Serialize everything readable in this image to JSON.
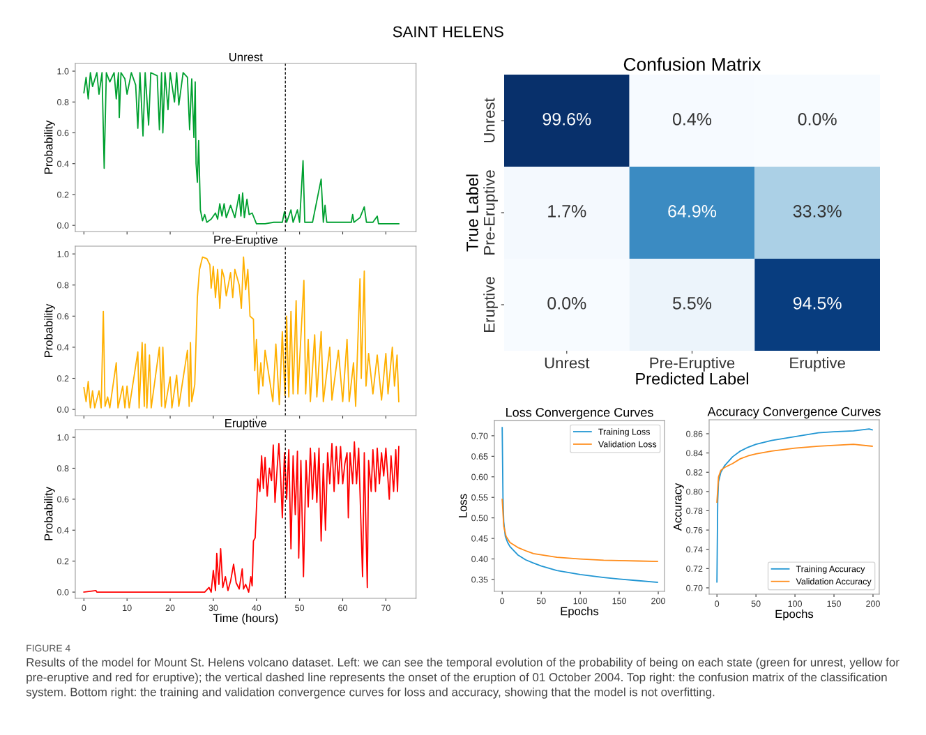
{
  "chart_data": [
    {
      "type": "line",
      "title": "Unrest",
      "ylabel": "Probability",
      "xlim": [
        -2,
        77
      ],
      "ylim": [
        -0.04,
        1.05
      ],
      "xticks": [
        0,
        10,
        20,
        30,
        40,
        50,
        60,
        70
      ],
      "yticks": [
        {
          "value": 0,
          "label": "0.0"
        },
        0.2,
        0.4,
        0.6,
        0.8,
        {
          "value": 1,
          "label": "1.0"
        }
      ],
      "tick_labels": "y",
      "grid": false,
      "legend": false,
      "annotations": [
        "SAINT HELENS",
        "FIGURE 4",
        "Results of the model for Mount St. Helens volcano dataset. Left: we can see the temporal evolution of the probability of being on each state (green for unrest, yellow for pre-eruptive and red for eruptive); the vertical dashed line represents the onset of the eruption of 01 October 2004. Top right: the confusion matrix of the classification system. Bottom right: the training and validation convergence curves for loss and accuracy, showing that the model is not overfitting."
      ],
      "ref_lines": [
        {
          "axis": "x",
          "value": 46.7,
          "label": null,
          "color": "#000000",
          "line_style": "dashed"
        }
      ],
      "series": [
        {
          "color": "#00a030",
          "x": [
            0,
            0.5,
            1,
            1.5,
            2,
            3,
            3.5,
            4.2,
            4.7,
            5.2,
            6,
            7,
            7.5,
            8,
            8.2,
            8.6,
            9.5,
            10,
            11,
            12,
            12.5,
            13,
            13.7,
            14.2,
            15,
            15.5,
            17,
            17.5,
            18,
            18.3,
            18.8,
            19.5,
            20,
            21,
            21.5,
            22,
            23,
            24,
            24.5,
            25,
            25.5,
            25.8,
            26,
            26.3,
            26.6,
            27,
            27.5,
            28,
            28.5,
            29.5,
            30.5,
            31,
            31.5,
            32,
            32.5,
            33,
            34,
            35,
            36,
            36.4,
            36.8,
            37.2,
            37.8,
            38.3,
            39,
            40,
            42,
            44,
            46,
            46.5,
            47,
            48,
            48.5,
            49.5,
            50,
            50.8,
            51.2,
            53,
            55,
            55.5,
            55.9,
            56.3,
            59,
            62,
            62.3,
            62.6,
            64,
            65,
            65.5,
            67,
            68,
            68.3,
            70,
            73
          ],
          "values": [
            0.86,
            0.96,
            0.82,
            0.99,
            0.9,
            0.99,
            0.85,
            0.99,
            0.37,
            0.99,
            0.93,
            0.99,
            0.82,
            0.99,
            0.7,
            0.99,
            0.95,
            0.85,
            0.99,
            0.91,
            0.63,
            0.99,
            0.58,
            0.99,
            0.65,
            0.99,
            0.97,
            0.62,
            0.99,
            0.6,
            0.99,
            0.75,
            0.99,
            0.8,
            0.99,
            0.78,
            0.99,
            0.96,
            0.62,
            0.95,
            0.57,
            0.93,
            0.4,
            0.28,
            0.55,
            0.1,
            0.03,
            0.07,
            0.02,
            0.04,
            0.08,
            0.04,
            0.14,
            0.06,
            0.14,
            0.05,
            0.13,
            0.05,
            0.2,
            0.06,
            0.21,
            0.05,
            0.17,
            0.07,
            0.08,
            0.01,
            0.01,
            0.02,
            0.02,
            0.09,
            0.02,
            0.1,
            0.02,
            0.1,
            0.02,
            0.42,
            0.02,
            0.02,
            0.3,
            0.02,
            0.13,
            0.02,
            0.02,
            0.02,
            0.07,
            0.02,
            0.05,
            0.12,
            0.02,
            0.02,
            0.06,
            0.01,
            0.01,
            0.01
          ]
        }
      ]
    },
    {
      "type": "line",
      "title": "Pre-Eruptive",
      "ylabel": "Probability",
      "xlim": [
        -2,
        77
      ],
      "ylim": [
        -0.04,
        1.05
      ],
      "xticks": [
        0,
        10,
        20,
        30,
        40,
        50,
        60,
        70
      ],
      "yticks": [
        {
          "value": 0,
          "label": "0.0"
        },
        0.2,
        0.4,
        0.6,
        0.8,
        {
          "value": 1,
          "label": "1.0"
        }
      ],
      "tick_labels": "y",
      "grid": false,
      "legend": false,
      "ref_lines": [
        {
          "axis": "x",
          "value": 46.7,
          "label": null,
          "color": "#000000",
          "line_style": "dashed"
        }
      ],
      "series": [
        {
          "color": "#ffb000",
          "x": [
            0,
            0.5,
            1,
            1.5,
            2,
            2.5,
            3.5,
            4,
            4.5,
            4.9,
            5.5,
            6,
            7.5,
            7.9,
            9,
            9.5,
            10,
            10.5,
            12.5,
            12.8,
            13.5,
            14,
            14.2,
            14.6,
            15.2,
            15.6,
            17.5,
            18,
            18.3,
            18.8,
            20,
            20.4,
            21.5,
            22,
            24,
            24.4,
            24.7,
            25,
            25.7,
            26.3,
            26.8,
            27.5,
            28.5,
            29.2,
            29.5,
            30,
            30.5,
            31,
            31.5,
            32,
            32.5,
            33,
            34,
            34.5,
            35,
            36,
            36.5,
            37,
            37.5,
            38,
            38.5,
            39.3,
            39.6,
            40,
            40.5,
            41,
            41.5,
            42,
            43,
            43.8,
            44.5,
            45.3,
            46,
            46.6,
            47,
            47.5,
            48,
            48.5,
            49.2,
            49.6,
            51,
            51.4,
            52,
            52.5,
            53.5,
            54,
            55,
            55.5,
            57,
            57.5,
            59,
            60,
            61,
            61.5,
            62.5,
            63,
            64,
            64.3,
            65,
            65.4,
            66,
            67,
            68,
            69,
            70,
            70.5,
            71.5,
            72,
            72.6,
            73
          ],
          "values": [
            0.14,
            0.05,
            0.18,
            0.01,
            0.12,
            0.01,
            0.12,
            0.01,
            0.63,
            0.02,
            0.08,
            0.01,
            0.3,
            0.01,
            0.15,
            0.01,
            0.15,
            0.01,
            0.37,
            0.01,
            0.43,
            0.02,
            0.42,
            0.01,
            0.35,
            0.01,
            0.4,
            0.02,
            0.4,
            0.01,
            0.21,
            0.01,
            0.22,
            0.02,
            0.38,
            0.02,
            0.43,
            0.05,
            0.16,
            0.72,
            0.9,
            0.98,
            0.97,
            0.93,
            0.78,
            0.92,
            0.72,
            0.9,
            0.65,
            0.9,
            0.85,
            0.73,
            0.88,
            0.72,
            0.9,
            0.8,
            0.65,
            0.98,
            0.77,
            0.9,
            0.6,
            0.58,
            0.25,
            0.45,
            0.1,
            0.3,
            0.15,
            0.38,
            0.2,
            0.05,
            0.42,
            0.03,
            0.5,
            0.09,
            0.6,
            0.08,
            0.63,
            0.1,
            0.7,
            0.1,
            0.83,
            0.1,
            0.45,
            0.05,
            0.48,
            0.08,
            0.5,
            0.05,
            0.4,
            0.06,
            0.38,
            0.05,
            0.45,
            0.05,
            0.3,
            0.02,
            0.84,
            0.2,
            0.89,
            0.15,
            0.36,
            0.1,
            0.35,
            0.06,
            0.36,
            0.1,
            0.4,
            0.15,
            0.35,
            0.05
          ]
        }
      ]
    },
    {
      "type": "line",
      "title": "Eruptive",
      "xlabel": "Time (hours)",
      "ylabel": "Probability",
      "xlim": [
        -2,
        77
      ],
      "ylim": [
        -0.04,
        1.05
      ],
      "xticks": [
        0,
        10,
        20,
        30,
        40,
        50,
        60,
        70
      ],
      "yticks": [
        {
          "value": 0,
          "label": "0.0"
        },
        0.2,
        0.4,
        0.6,
        0.8,
        {
          "value": 1,
          "label": "1.0"
        }
      ],
      "grid": false,
      "legend": false,
      "ref_lines": [
        {
          "axis": "x",
          "value": 46.7,
          "label": null,
          "color": "#000000",
          "line_style": "dashed"
        }
      ],
      "series": [
        {
          "color": "#ff0000",
          "x": [
            0,
            2.8,
            3,
            28,
            29,
            29.5,
            30,
            30.5,
            30.8,
            31.3,
            31.7,
            32.2,
            32.8,
            33.4,
            34,
            34.7,
            35.3,
            36,
            36.7,
            37,
            37.5,
            38.2,
            38.7,
            39,
            39.3,
            39.7,
            40.3,
            40.8,
            41.2,
            41.6,
            42,
            42.5,
            43,
            43.5,
            43.9,
            44.3,
            44.8,
            45.2,
            45.6,
            46,
            46.5,
            47,
            47.5,
            48,
            48.5,
            49,
            49.5,
            49.8,
            50.3,
            50.9,
            51.5,
            52,
            52.5,
            53,
            53.5,
            54,
            54.5,
            55,
            55.5,
            56,
            56.5,
            57,
            57.5,
            58,
            58.5,
            59,
            59.5,
            60,
            60.5,
            61,
            61.3,
            61.7,
            62.3,
            62.7,
            63.2,
            63.7,
            64,
            64.6,
            65,
            65.7,
            66,
            66.6,
            67,
            67.6,
            68,
            68.5,
            69,
            69.5,
            70,
            70.8,
            71.2,
            71.8,
            72.3,
            72.7,
            73
          ],
          "values": [
            0.0,
            0.01,
            0.0,
            0.0,
            0.03,
            0.0,
            0.14,
            0.01,
            0.25,
            0.05,
            0.28,
            0.03,
            0.1,
            0.01,
            0.07,
            0.18,
            0.06,
            0.02,
            0.15,
            0.02,
            0.05,
            0.0,
            0.1,
            0.04,
            0.33,
            0.35,
            0.73,
            0.65,
            0.88,
            0.67,
            0.87,
            0.62,
            0.8,
            0.72,
            0.95,
            0.58,
            0.8,
            0.96,
            0.75,
            0.48,
            0.9,
            0.6,
            0.92,
            0.28,
            0.88,
            0.5,
            0.91,
            0.22,
            0.85,
            0.1,
            0.85,
            0.55,
            0.93,
            0.6,
            0.9,
            0.58,
            0.93,
            0.33,
            0.83,
            0.4,
            0.9,
            0.7,
            0.96,
            0.65,
            0.94,
            0.7,
            0.94,
            0.7,
            0.83,
            0.9,
            0.48,
            0.9,
            0.7,
            0.97,
            0.7,
            0.93,
            0.65,
            0.1,
            0.9,
            0.03,
            0.85,
            0.65,
            0.92,
            0.65,
            0.93,
            0.7,
            0.9,
            0.75,
            0.93,
            0.6,
            0.88,
            0.65,
            0.92,
            0.65,
            0.94
          ]
        }
      ]
    },
    {
      "type": "heatmap",
      "title": "Confusion Matrix",
      "xlabel": "Predicted Label",
      "ylabel": "True Label",
      "categories": [
        "Unrest",
        "Pre-Eruptive",
        "Eruptive"
      ],
      "y_categories": [
        "Unrest",
        "Pre-Eruptive",
        "Eruptive"
      ],
      "cells": [
        [
          99.6,
          0.4,
          0.0
        ],
        [
          1.7,
          64.9,
          33.3
        ],
        [
          0.0,
          5.5,
          94.5
        ]
      ],
      "cell_labels": [
        [
          "99.6%",
          "0.4%",
          "0.0%"
        ],
        [
          "1.7%",
          "64.9%",
          "33.3%"
        ],
        [
          "0.0%",
          "5.5%",
          "94.5%"
        ]
      ]
    },
    {
      "type": "line",
      "title": "Loss Convergence Curves",
      "xlabel": "Epochs",
      "ylabel": "Loss",
      "xlim": [
        -10,
        208
      ],
      "ylim": [
        0.321,
        0.737
      ],
      "xticks": [
        0,
        50,
        100,
        150,
        200
      ],
      "yticks": [
        0.35,
        {
          "value": 0.4,
          "label": "0.40"
        },
        0.45,
        {
          "value": 0.5,
          "label": "0.50"
        },
        0.55,
        {
          "value": 0.6,
          "label": "0.60"
        },
        0.65,
        {
          "value": 0.7,
          "label": "0.70"
        }
      ],
      "grid": false,
      "legend": "top right",
      "series": [
        {
          "name": "Training Loss",
          "color": "#2196d3",
          "x": [
            0,
            1,
            2,
            4,
            7,
            10,
            20,
            30,
            40,
            50,
            70,
            100,
            130,
            150,
            175,
            199
          ],
          "values": [
            0.72,
            0.55,
            0.49,
            0.455,
            0.44,
            0.43,
            0.41,
            0.398,
            0.39,
            0.383,
            0.372,
            0.362,
            0.355,
            0.351,
            0.347,
            0.343
          ]
        },
        {
          "name": "Validation Loss",
          "color": "#ff8c1a",
          "x": [
            0,
            2,
            5,
            10,
            20,
            30,
            40,
            50,
            70,
            100,
            130,
            150,
            175,
            199
          ],
          "values": [
            0.545,
            0.48,
            0.455,
            0.44,
            0.428,
            0.42,
            0.413,
            0.41,
            0.404,
            0.4,
            0.397,
            0.396,
            0.395,
            0.394
          ]
        }
      ]
    },
    {
      "type": "line",
      "title": "Accuracy Convergence Curves",
      "xlabel": "Epochs",
      "ylabel": "Accuracy",
      "xlim": [
        -10,
        208
      ],
      "ylim": [
        0.6935,
        0.8745
      ],
      "xticks": [
        0,
        50,
        100,
        150,
        200
      ],
      "yticks": [
        {
          "value": 0.7,
          "label": "0.70"
        },
        0.72,
        0.74,
        0.76,
        0.78,
        {
          "value": 0.8,
          "label": "0.80"
        },
        0.82,
        0.84,
        0.86
      ],
      "grid": false,
      "legend": "bottom right",
      "series": [
        {
          "name": "Training Accuracy",
          "color": "#2196d3",
          "x": [
            0,
            1,
            2,
            5,
            10,
            20,
            30,
            40,
            50,
            70,
            100,
            130,
            150,
            175,
            195,
            199
          ],
          "values": [
            0.706,
            0.79,
            0.81,
            0.82,
            0.827,
            0.836,
            0.842,
            0.846,
            0.849,
            0.853,
            0.857,
            0.861,
            0.862,
            0.863,
            0.865,
            0.864
          ]
        },
        {
          "name": "Validation Accuracy",
          "color": "#ff8c1a",
          "x": [
            0,
            2,
            5,
            10,
            20,
            30,
            40,
            50,
            70,
            100,
            130,
            150,
            175,
            199
          ],
          "values": [
            0.789,
            0.815,
            0.822,
            0.825,
            0.829,
            0.834,
            0.837,
            0.839,
            0.842,
            0.845,
            0.847,
            0.848,
            0.849,
            0.847
          ]
        }
      ]
    }
  ]
}
